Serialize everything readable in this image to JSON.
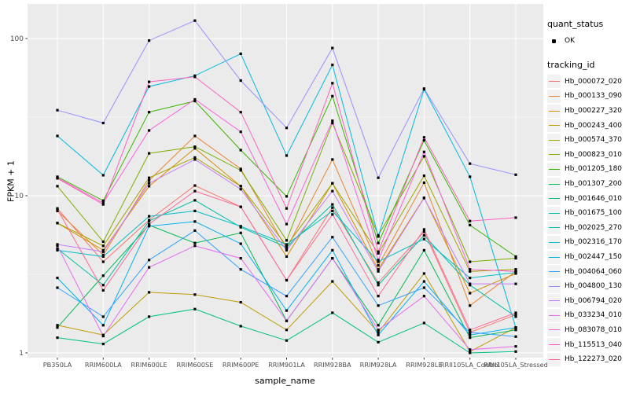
{
  "figure": {
    "y_axis": {
      "label": "FPKM + 1",
      "tick_labels": [
        "100",
        "10",
        "1"
      ],
      "color": "#4D4D4D"
    },
    "x_axis": {
      "label": "sample_name",
      "color": "#4D4D4D"
    },
    "panel": {
      "background": "#EBEBEB",
      "grid_color": "#FFFFFF"
    },
    "legend": {
      "quant_status": {
        "title": "quant_status",
        "items": [
          {
            "label": "OK",
            "marker": "point",
            "color": "#000000"
          }
        ]
      },
      "tracking_id": {
        "title": "tracking_id"
      }
    }
  },
  "chart_data": {
    "type": "line",
    "title": "",
    "xlabel": "sample_name",
    "ylabel": "FPKM + 1",
    "y_scale": "log10",
    "y_ticks": [
      1,
      10,
      100
    ],
    "y_minor_ticks": [
      3.162,
      31.62
    ],
    "ylim": [
      0.93,
      165
    ],
    "grid": true,
    "legend_position": "right",
    "point_marker": "black square point (quant_status = OK)",
    "categories": [
      "PB350LA",
      "RRIM600LA",
      "RRIM600LE",
      "RRIM600SE",
      "RRIM600PE",
      "RRIM901LA",
      "RRIM928BA",
      "RRIM928LA",
      "RRIM928LE",
      "RRII105LA_Control",
      "RRII105LA_Stressed"
    ],
    "series": [
      {
        "name": "Hb_000072_020",
        "color": "#F8766D",
        "values": [
          8.3,
          3.8,
          7.0,
          11.6,
          8.5,
          2.9,
          8.4,
          2.8,
          5.9,
          1.35,
          1.75
        ]
      },
      {
        "name": "Hb_000133_090",
        "color": "#EA8331",
        "values": [
          8.0,
          4.2,
          12.5,
          24,
          14.8,
          4.6,
          17,
          3.6,
          12.1,
          2.0,
          3.3
        ]
      },
      {
        "name": "Hb_000227_320",
        "color": "#D89000",
        "values": [
          6.7,
          4.5,
          11.5,
          20,
          11.5,
          4.1,
          12,
          3.4,
          9.7,
          2.4,
          3.2
        ]
      },
      {
        "name": "Hb_000243_400",
        "color": "#C09B00",
        "values": [
          1.5,
          1.3,
          2.43,
          2.35,
          2.1,
          1.4,
          2.85,
          1.35,
          3.2,
          1.02,
          1.45
        ]
      },
      {
        "name": "Hb_000574_370",
        "color": "#A3A500",
        "values": [
          6.7,
          4.8,
          13,
          17.5,
          11.5,
          4.8,
          12,
          4.3,
          13.4,
          3.3,
          3.4
        ]
      },
      {
        "name": "Hb_000823_010",
        "color": "#7CAE00",
        "values": [
          11.5,
          5.1,
          18.6,
          20.5,
          14.5,
          5.2,
          29,
          5.6,
          17.8,
          3.8,
          4.0
        ]
      },
      {
        "name": "Hb_001205_180",
        "color": "#39B600",
        "values": [
          13.2,
          9.3,
          34,
          40,
          19.5,
          9.9,
          43,
          5.0,
          22.5,
          6.5,
          4.1
        ]
      },
      {
        "name": "Hb_001307_200",
        "color": "#00BB4E",
        "values": [
          1.45,
          3.1,
          6.5,
          5.0,
          5.8,
          1.6,
          4.0,
          1.5,
          4.5,
          1.25,
          1.4
        ]
      },
      {
        "name": "Hb_001646_010",
        "color": "#00C087",
        "values": [
          1.25,
          1.14,
          1.7,
          1.9,
          1.48,
          1.2,
          1.8,
          1.17,
          1.55,
          1.0,
          1.02
        ]
      },
      {
        "name": "Hb_001675_100",
        "color": "#00C1A3",
        "values": [
          4.6,
          2.7,
          6.9,
          9.35,
          6.3,
          4.7,
          8.8,
          2.7,
          5.6,
          2.7,
          1.7
        ]
      },
      {
        "name": "Hb_002025_270",
        "color": "#00BFC4",
        "values": [
          4.5,
          4.1,
          7.4,
          8.0,
          6.4,
          4.9,
          8.0,
          3.8,
          5.3,
          3.0,
          3.25
        ]
      },
      {
        "name": "Hb_002316_170",
        "color": "#00BAE0",
        "values": [
          24,
          13.5,
          49.5,
          58,
          80,
          18,
          68,
          5.5,
          47.5,
          13.2,
          1.45
        ]
      },
      {
        "name": "Hb_002447_150",
        "color": "#00B0F6",
        "values": [
          3.0,
          1.5,
          6.4,
          6.85,
          4.95,
          1.86,
          4.5,
          1.3,
          2.85,
          1.3,
          1.45
        ]
      },
      {
        "name": "Hb_004064_060",
        "color": "#35A2FF",
        "values": [
          2.6,
          1.7,
          3.9,
          6.0,
          3.4,
          2.3,
          5.45,
          2.0,
          2.6,
          1.35,
          1.27
        ]
      },
      {
        "name": "Hb_004800_130",
        "color": "#9590FF",
        "values": [
          35,
          29,
          97,
          130,
          54,
          27,
          87,
          13,
          48,
          16,
          13.6
        ]
      },
      {
        "name": "Hb_006794_020",
        "color": "#C77CFF",
        "values": [
          4.9,
          4.4,
          12,
          17,
          11,
          4.5,
          10.7,
          3.3,
          9.65,
          2.75,
          2.75
        ]
      },
      {
        "name": "Hb_033234_010",
        "color": "#E76BF3",
        "values": [
          4.8,
          1.28,
          3.5,
          4.8,
          4.0,
          1.6,
          4.0,
          1.4,
          2.3,
          1.05,
          1.1
        ]
      },
      {
        "name": "Hb_083078_010",
        "color": "#FA62DB",
        "values": [
          13.0,
          9.0,
          26,
          41,
          25.5,
          6.6,
          30,
          3.9,
          19,
          3.4,
          3.3
        ]
      },
      {
        "name": "Hb_115513_040",
        "color": "#FF62BC",
        "values": [
          12.9,
          8.8,
          53,
          57,
          34,
          8.3,
          52,
          4.4,
          23.5,
          6.9,
          7.25
        ]
      },
      {
        "name": "Hb_122273_020",
        "color": "#FF6A98",
        "values": [
          8.2,
          2.5,
          6.6,
          10.7,
          8.5,
          2.9,
          7.6,
          2.3,
          6.1,
          1.4,
          1.8
        ]
      }
    ]
  }
}
